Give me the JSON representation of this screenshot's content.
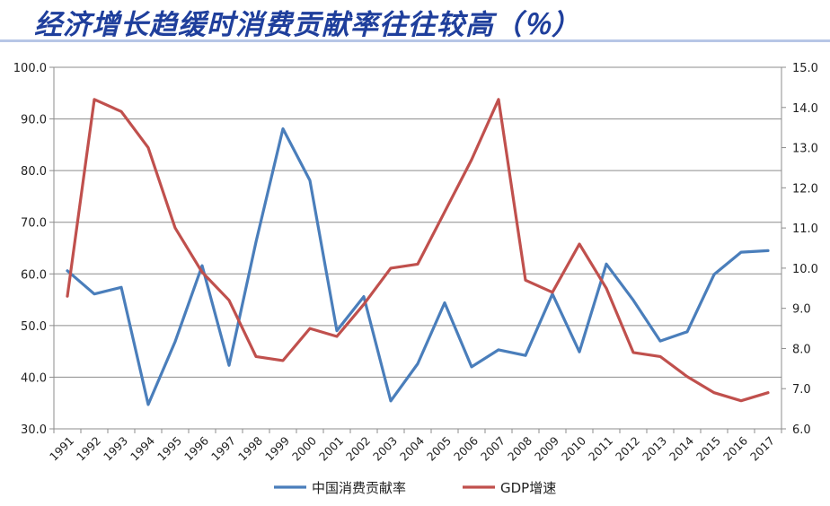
{
  "title": "经济增长趋缓时消费贡献率往往较高（％）",
  "watermark": "",
  "chart_data": {
    "type": "line",
    "title": "",
    "categories": [
      "1991",
      "1992",
      "1993",
      "1994",
      "1995",
      "1996",
      "1997",
      "1998",
      "1999",
      "2000",
      "2001",
      "2002",
      "2003",
      "2004",
      "2005",
      "2006",
      "2007",
      "2008",
      "2009",
      "2010",
      "2011",
      "2012",
      "2013",
      "2014",
      "2015",
      "2016",
      "2017"
    ],
    "series": [
      {
        "name": "中国消费贡献率",
        "axis": "left",
        "color": "#4a7ebb",
        "values": [
          60.6,
          56.1,
          57.4,
          34.7,
          46.9,
          61.6,
          42.3,
          66.2,
          88.1,
          78.1,
          49.0,
          55.6,
          35.4,
          42.6,
          54.4,
          42.0,
          45.3,
          44.2,
          56.1,
          44.9,
          61.9,
          54.9,
          47.0,
          48.8,
          59.9,
          64.2,
          64.5
        ]
      },
      {
        "name": "GDP增速",
        "axis": "right",
        "color": "#c0504d",
        "values": [
          9.3,
          14.2,
          13.9,
          13.0,
          11.0,
          9.9,
          9.2,
          7.8,
          7.7,
          8.5,
          8.3,
          9.1,
          10.0,
          10.1,
          11.4,
          12.7,
          14.2,
          9.7,
          9.4,
          10.6,
          9.5,
          7.9,
          7.8,
          7.3,
          6.9,
          6.7,
          6.9
        ]
      }
    ],
    "y_left": {
      "min": 30,
      "max": 100,
      "step": 10,
      "tick_labels": [
        "30.0",
        "40.0",
        "50.0",
        "60.0",
        "70.0",
        "80.0",
        "90.0",
        "100.0"
      ]
    },
    "y_right": {
      "min": 6,
      "max": 15,
      "step": 1,
      "tick_labels": [
        "6.0",
        "7.0",
        "8.0",
        "9.0",
        "10.0",
        "11.0",
        "12.0",
        "13.0",
        "14.0",
        "15.0"
      ]
    },
    "x_tick_labels": [
      "1991",
      "1992",
      "1993",
      "1994",
      "1995",
      "1996",
      "1997",
      "1998",
      "1999",
      "2000",
      "2001",
      "2002",
      "2003",
      "2004",
      "2005",
      "2006",
      "2007",
      "2008",
      "2009",
      "2010",
      "2011",
      "2012",
      "2013",
      "2014",
      "2015",
      "2016",
      "2017"
    ],
    "grid": true,
    "legend": "bottom"
  }
}
